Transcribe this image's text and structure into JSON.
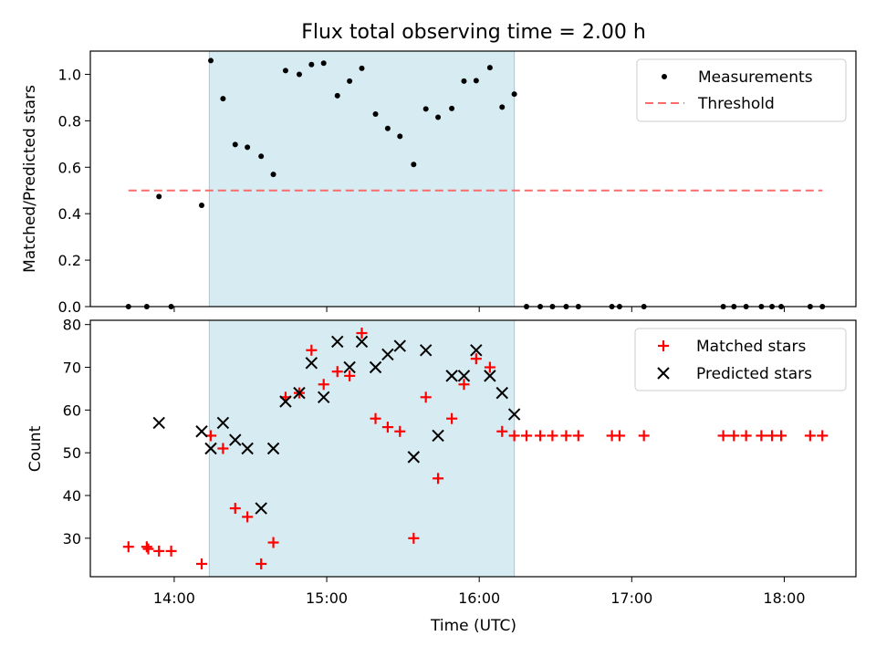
{
  "chart_data": {
    "title": "Flux total observing time = 2.00 h",
    "xlabel": "Time (UTC)",
    "x_unit": "hours UTC (decimal)",
    "x_ticks": [
      {
        "value": 14,
        "label": "14:00"
      },
      {
        "value": 15,
        "label": "15:00"
      },
      {
        "value": 16,
        "label": "16:00"
      },
      {
        "value": 17,
        "label": "17:00"
      },
      {
        "value": 18,
        "label": "18:00"
      }
    ],
    "xlim": [
      13.45,
      18.47
    ],
    "highlight_span": {
      "x0": 14.23,
      "x1": 16.23,
      "color": "#add8e6"
    },
    "panels": [
      {
        "id": "top",
        "type": "scatter",
        "ylabel": "Matched/Predicted stars",
        "ylim": [
          0.0,
          1.1
        ],
        "y_ticks": [
          "0.0",
          "0.2",
          "0.4",
          "0.6",
          "0.8",
          "1.0"
        ],
        "y_tick_values": [
          0.0,
          0.2,
          0.4,
          0.6,
          0.8,
          1.0
        ],
        "legend_position": "top-right",
        "series": [
          {
            "name": "Measurements",
            "marker": "dot",
            "color": "#000000",
            "points": [
              [
                13.7,
                0.0
              ],
              [
                13.82,
                0.0
              ],
              [
                13.9,
                0.474
              ],
              [
                13.98,
                0.0
              ],
              [
                14.18,
                0.436
              ],
              [
                14.24,
                1.059
              ],
              [
                14.32,
                0.895
              ],
              [
                14.4,
                0.698
              ],
              [
                14.48,
                0.686
              ],
              [
                14.57,
                0.647
              ],
              [
                14.65,
                0.569
              ],
              [
                14.73,
                1.016
              ],
              [
                14.82,
                1.0
              ],
              [
                14.9,
                1.042
              ],
              [
                14.98,
                1.048
              ],
              [
                15.07,
                0.908
              ],
              [
                15.15,
                0.971
              ],
              [
                15.23,
                1.026
              ],
              [
                15.32,
                0.829
              ],
              [
                15.4,
                0.767
              ],
              [
                15.48,
                0.733
              ],
              [
                15.57,
                0.612
              ],
              [
                15.65,
                0.851
              ],
              [
                15.73,
                0.815
              ],
              [
                15.82,
                0.853
              ],
              [
                15.9,
                0.971
              ],
              [
                15.98,
                0.973
              ],
              [
                16.07,
                1.029
              ],
              [
                16.15,
                0.859
              ],
              [
                16.23,
                0.915
              ],
              [
                16.31,
                0.0
              ],
              [
                16.4,
                0.0
              ],
              [
                16.48,
                0.0
              ],
              [
                16.57,
                0.0
              ],
              [
                16.65,
                0.0
              ],
              [
                16.87,
                0.0
              ],
              [
                16.92,
                0.0
              ],
              [
                17.08,
                0.0
              ],
              [
                17.6,
                0.0
              ],
              [
                17.67,
                0.0
              ],
              [
                17.75,
                0.0
              ],
              [
                17.85,
                0.0
              ],
              [
                17.92,
                0.0
              ],
              [
                17.98,
                0.0
              ],
              [
                18.17,
                0.0
              ],
              [
                18.25,
                0.0
              ]
            ]
          },
          {
            "name": "Threshold",
            "marker": "dashed-line",
            "color": "#ff6b6b",
            "points": [
              [
                13.7,
                0.5
              ],
              [
                18.25,
                0.5
              ]
            ]
          }
        ]
      },
      {
        "id": "bottom",
        "type": "scatter",
        "ylabel": "Count",
        "ylim": [
          21,
          81
        ],
        "y_ticks": [
          "30",
          "40",
          "50",
          "60",
          "70",
          "80"
        ],
        "y_tick_values": [
          30,
          40,
          50,
          60,
          70,
          80
        ],
        "legend_position": "top-right",
        "series": [
          {
            "name": "Matched stars",
            "marker": "plus",
            "color": "#ff0000",
            "points": [
              [
                13.7,
                28
              ],
              [
                13.82,
                28
              ],
              [
                13.83,
                27.5
              ],
              [
                13.9,
                27
              ],
              [
                13.98,
                27
              ],
              [
                14.18,
                24
              ],
              [
                14.24,
                54
              ],
              [
                14.32,
                51
              ],
              [
                14.4,
                37
              ],
              [
                14.48,
                35
              ],
              [
                14.57,
                24
              ],
              [
                14.65,
                29
              ],
              [
                14.73,
                63
              ],
              [
                14.82,
                64
              ],
              [
                14.9,
                74
              ],
              [
                14.98,
                66
              ],
              [
                15.07,
                69
              ],
              [
                15.15,
                68
              ],
              [
                15.23,
                78
              ],
              [
                15.32,
                58
              ],
              [
                15.4,
                56
              ],
              [
                15.48,
                55
              ],
              [
                15.57,
                30
              ],
              [
                15.65,
                63
              ],
              [
                15.73,
                44
              ],
              [
                15.82,
                58
              ],
              [
                15.9,
                66
              ],
              [
                15.98,
                72
              ],
              [
                16.07,
                70
              ],
              [
                16.15,
                55
              ],
              [
                16.23,
                54
              ],
              [
                16.31,
                54
              ],
              [
                16.4,
                54
              ],
              [
                16.48,
                54
              ],
              [
                16.57,
                54
              ],
              [
                16.65,
                54
              ],
              [
                16.87,
                54
              ],
              [
                16.92,
                54
              ],
              [
                17.08,
                54
              ],
              [
                17.6,
                54
              ],
              [
                17.67,
                54
              ],
              [
                17.75,
                54
              ],
              [
                17.85,
                54
              ],
              [
                17.92,
                54
              ],
              [
                17.98,
                54
              ],
              [
                18.17,
                54
              ],
              [
                18.25,
                54
              ]
            ]
          },
          {
            "name": "Predicted stars",
            "marker": "x",
            "color": "#000000",
            "points": [
              [
                13.9,
                57
              ],
              [
                14.18,
                55
              ],
              [
                14.24,
                51
              ],
              [
                14.32,
                57
              ],
              [
                14.4,
                53
              ],
              [
                14.48,
                51
              ],
              [
                14.57,
                37
              ],
              [
                14.65,
                51
              ],
              [
                14.73,
                62
              ],
              [
                14.82,
                64
              ],
              [
                14.9,
                71
              ],
              [
                14.98,
                63
              ],
              [
                15.07,
                76
              ],
              [
                15.15,
                70
              ],
              [
                15.23,
                76
              ],
              [
                15.32,
                70
              ],
              [
                15.4,
                73
              ],
              [
                15.48,
                75
              ],
              [
                15.57,
                49
              ],
              [
                15.65,
                74
              ],
              [
                15.73,
                54
              ],
              [
                15.82,
                68
              ],
              [
                15.9,
                68
              ],
              [
                15.98,
                74
              ],
              [
                16.07,
                68
              ],
              [
                16.15,
                64
              ],
              [
                16.23,
                59
              ]
            ]
          }
        ]
      }
    ]
  }
}
